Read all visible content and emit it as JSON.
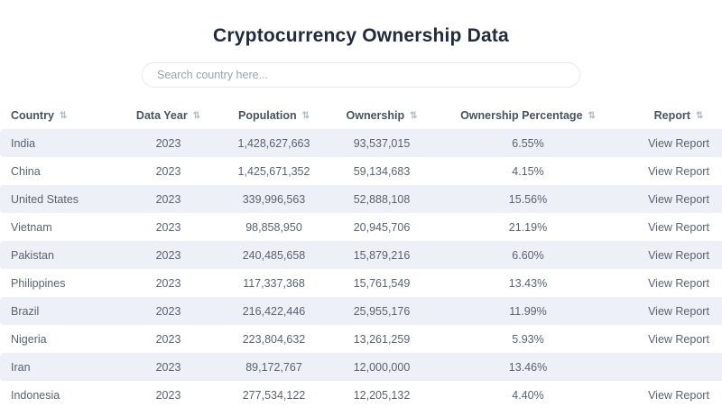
{
  "page": {
    "title": "Cryptocurrency Ownership Data"
  },
  "search": {
    "placeholder": "Search country here...",
    "value": ""
  },
  "colors": {
    "title_text": "#212b3b",
    "header_text": "#49525e",
    "cell_text": "#5a6270",
    "row_stripe": "#edf0f6",
    "search_border": "#e5e8ee"
  },
  "icons": {
    "sort": "sort-up-down-icon"
  },
  "table": {
    "columns": [
      {
        "key": "country",
        "label": "Country",
        "sortable": true
      },
      {
        "key": "data_year",
        "label": "Data Year",
        "sortable": true
      },
      {
        "key": "population",
        "label": "Population",
        "sortable": true
      },
      {
        "key": "ownership",
        "label": "Ownership",
        "sortable": true
      },
      {
        "key": "ownership_percentage",
        "label": "Ownership Percentage",
        "sortable": true
      },
      {
        "key": "report",
        "label": "Report",
        "sortable": true
      }
    ],
    "rows": [
      {
        "country": "India",
        "data_year": "2023",
        "population": "1,428,627,663",
        "ownership": "93,537,015",
        "ownership_percentage": "6.55%",
        "report": "View Report"
      },
      {
        "country": "China",
        "data_year": "2023",
        "population": "1,425,671,352",
        "ownership": "59,134,683",
        "ownership_percentage": "4.15%",
        "report": "View Report"
      },
      {
        "country": "United States",
        "data_year": "2023",
        "population": "339,996,563",
        "ownership": "52,888,108",
        "ownership_percentage": "15.56%",
        "report": "View Report"
      },
      {
        "country": "Vietnam",
        "data_year": "2023",
        "population": "98,858,950",
        "ownership": "20,945,706",
        "ownership_percentage": "21.19%",
        "report": "View Report"
      },
      {
        "country": "Pakistan",
        "data_year": "2023",
        "population": "240,485,658",
        "ownership": "15,879,216",
        "ownership_percentage": "6.60%",
        "report": "View Report"
      },
      {
        "country": "Philippines",
        "data_year": "2023",
        "population": "117,337,368",
        "ownership": "15,761,549",
        "ownership_percentage": "13.43%",
        "report": "View Report"
      },
      {
        "country": "Brazil",
        "data_year": "2023",
        "population": "216,422,446",
        "ownership": "25,955,176",
        "ownership_percentage": "11.99%",
        "report": "View Report"
      },
      {
        "country": "Nigeria",
        "data_year": "2023",
        "population": "223,804,632",
        "ownership": "13,261,259",
        "ownership_percentage": "5.93%",
        "report": "View Report"
      },
      {
        "country": "Iran",
        "data_year": "2023",
        "population": "89,172,767",
        "ownership": "12,000,000",
        "ownership_percentage": "13.46%",
        "report": ""
      },
      {
        "country": "Indonesia",
        "data_year": "2023",
        "population": "277,534,122",
        "ownership": "12,205,132",
        "ownership_percentage": "4.40%",
        "report": "View Report"
      }
    ]
  }
}
